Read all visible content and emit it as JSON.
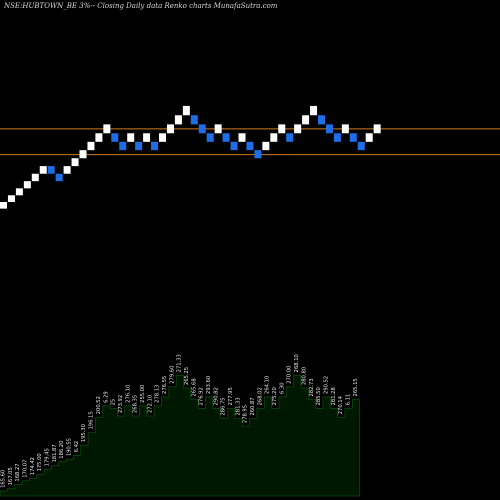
{
  "chart_data": {
    "type": "renko",
    "title": "NSE:HUBTOWN_BE 3%-- Closing Daily data Renko charts MunafaSutra.com",
    "brick_colors": {
      "up": "#ffffff",
      "down": "#1e6ee8"
    },
    "reference_lines": {
      "color": "#d27a1e",
      "prices": [
        262.5,
        239.9
      ]
    },
    "bricks": [
      {
        "dir": "up",
        "low": 192.5,
        "high": 198.3
      },
      {
        "dir": "up",
        "low": 198.3,
        "high": 204.2
      },
      {
        "dir": "up",
        "low": 204.2,
        "high": 210.3
      },
      {
        "dir": "up",
        "low": 210.3,
        "high": 216.6
      },
      {
        "dir": "up",
        "low": 216.6,
        "high": 223.1
      },
      {
        "dir": "up",
        "low": 223.1,
        "high": 229.8
      },
      {
        "dir": "down",
        "low": 223.1,
        "high": 229.8
      },
      {
        "dir": "down",
        "low": 216.6,
        "high": 223.1
      },
      {
        "dir": "up",
        "low": 223.1,
        "high": 229.8
      },
      {
        "dir": "up",
        "low": 229.8,
        "high": 236.7
      },
      {
        "dir": "up",
        "low": 236.7,
        "high": 243.8
      },
      {
        "dir": "up",
        "low": 243.8,
        "high": 251.1
      },
      {
        "dir": "up",
        "low": 251.1,
        "high": 258.6
      },
      {
        "dir": "up",
        "low": 258.6,
        "high": 266.4
      },
      {
        "dir": "down",
        "low": 251.1,
        "high": 258.6
      },
      {
        "dir": "down",
        "low": 243.8,
        "high": 251.1
      },
      {
        "dir": "up",
        "low": 251.1,
        "high": 258.6
      },
      {
        "dir": "down",
        "low": 243.8,
        "high": 251.1
      },
      {
        "dir": "up",
        "low": 251.1,
        "high": 258.6
      },
      {
        "dir": "down",
        "low": 243.8,
        "high": 251.1
      },
      {
        "dir": "up",
        "low": 251.1,
        "high": 258.6
      },
      {
        "dir": "up",
        "low": 258.6,
        "high": 266.4
      },
      {
        "dir": "up",
        "low": 266.4,
        "high": 274.4
      },
      {
        "dir": "up",
        "low": 274.4,
        "high": 282.6
      },
      {
        "dir": "down",
        "low": 266.4,
        "high": 274.4
      },
      {
        "dir": "down",
        "low": 258.6,
        "high": 266.4
      },
      {
        "dir": "down",
        "low": 251.1,
        "high": 258.6
      },
      {
        "dir": "up",
        "low": 258.6,
        "high": 266.4
      },
      {
        "dir": "down",
        "low": 251.1,
        "high": 258.6
      },
      {
        "dir": "down",
        "low": 243.8,
        "high": 251.1
      },
      {
        "dir": "up",
        "low": 251.1,
        "high": 258.6
      },
      {
        "dir": "down",
        "low": 243.8,
        "high": 251.1
      },
      {
        "dir": "down",
        "low": 236.7,
        "high": 243.8
      },
      {
        "dir": "up",
        "low": 243.8,
        "high": 251.1
      },
      {
        "dir": "up",
        "low": 251.1,
        "high": 258.6
      },
      {
        "dir": "up",
        "low": 258.6,
        "high": 266.4
      },
      {
        "dir": "down",
        "low": 251.1,
        "high": 258.6
      },
      {
        "dir": "up",
        "low": 258.6,
        "high": 266.4
      },
      {
        "dir": "up",
        "low": 266.4,
        "high": 274.4
      },
      {
        "dir": "up",
        "low": 274.4,
        "high": 282.6
      },
      {
        "dir": "down",
        "low": 266.4,
        "high": 274.4
      },
      {
        "dir": "down",
        "low": 258.6,
        "high": 266.4
      },
      {
        "dir": "down",
        "low": 251.1,
        "high": 258.6
      },
      {
        "dir": "up",
        "low": 258.6,
        "high": 266.4
      },
      {
        "dir": "down",
        "low": 251.1,
        "high": 258.6
      },
      {
        "dir": "down",
        "low": 243.8,
        "high": 251.1
      },
      {
        "dir": "up",
        "low": 251.1,
        "high": 258.6
      },
      {
        "dir": "up",
        "low": 258.6,
        "high": 266.4
      }
    ],
    "bottom_series": {
      "fill_color": "#001800",
      "line_color": "#0a4a0a",
      "values": [
        4,
        6,
        9,
        12,
        14,
        17,
        21,
        24,
        27,
        29,
        32,
        40,
        50,
        62,
        71,
        69,
        63,
        71,
        63,
        71,
        63,
        71,
        78,
        86,
        95,
        85,
        76,
        69,
        78,
        69,
        61,
        69,
        61,
        55,
        61,
        69,
        78,
        69,
        78,
        86,
        95,
        85,
        76,
        69,
        78,
        69,
        62,
        69,
        76
      ],
      "labels": [
        "165.60",
        "167.05",
        "168.27",
        "170.07",
        "174.42",
        "175.00",
        "179.45",
        "181.87",
        "186.20",
        "190.55",
        "6.42",
        "195.30",
        "196.15",
        "200.52",
        "6.29",
        "25",
        "273.92",
        "276.10",
        "268.35",
        "255.00",
        "272.10",
        "278.13",
        "276.55",
        "279.60",
        "271.33",
        "265.25",
        "265.68",
        "276.92",
        "293.60",
        "290.82",
        "286.75",
        "277.95",
        "281.33",
        "278.95",
        "260.87",
        "268.02",
        "264.10",
        "275.20",
        "6.30",
        "270.00",
        "268.10",
        "280.80",
        "282.73",
        "285.50",
        "290.52",
        "281.28",
        "270.14",
        "6.11",
        "265.15"
      ]
    }
  }
}
